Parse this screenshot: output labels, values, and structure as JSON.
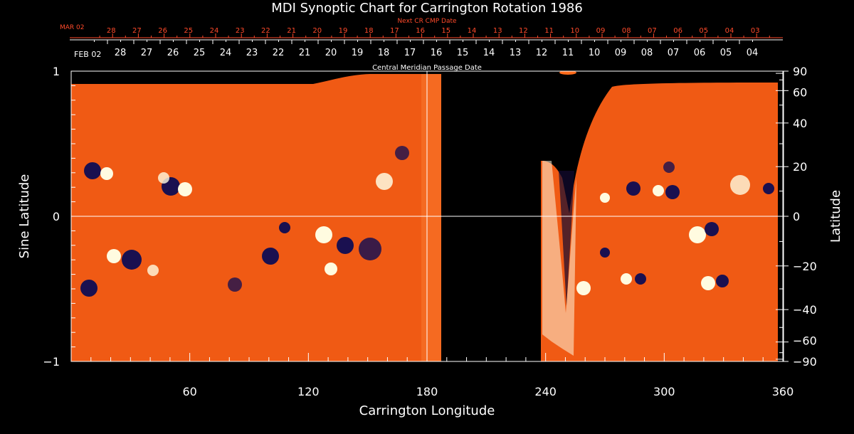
{
  "chart_data": {
    "type": "heatmap",
    "title": "MDI Synoptic Chart for Carrington Rotation 1986",
    "xlabel": "Carrington Longitude",
    "ylabel_left": "Sine Latitude",
    "ylabel_right": "Latitude",
    "xlim": [
      0,
      360
    ],
    "ylim": [
      -1,
      1
    ],
    "x_ticks": [
      60,
      120,
      180,
      240,
      300,
      360
    ],
    "y_ticks_left": [
      {
        "value": 1,
        "label": "1"
      },
      {
        "value": 0,
        "label": "0"
      },
      {
        "value": -1,
        "label": "−1"
      }
    ],
    "y_ticks_right": [
      {
        "deg": 90,
        "label": "90"
      },
      {
        "deg": 60,
        "label": "60"
      },
      {
        "deg": 40,
        "label": "40"
      },
      {
        "deg": 20,
        "label": "20"
      },
      {
        "deg": 0,
        "label": "0"
      },
      {
        "deg": -20,
        "label": "−20"
      },
      {
        "deg": -40,
        "label": "−40"
      },
      {
        "deg": -60,
        "label": "−60"
      },
      {
        "deg": -90,
        "label": "−90"
      }
    ],
    "cmp_axis": {
      "title": "Central Meridian Passage Date",
      "start_label": "FEB 02",
      "days": [
        "28",
        "27",
        "26",
        "25",
        "24",
        "23",
        "22",
        "21",
        "20",
        "19",
        "18",
        "17",
        "16",
        "15",
        "14",
        "13",
        "12",
        "11",
        "10",
        "09",
        "08",
        "07",
        "06",
        "05",
        "04"
      ]
    },
    "next_cr_axis": {
      "title": "Next CR CMP Date",
      "start_label": "MAR 02",
      "days": [
        "28",
        "27",
        "26",
        "25",
        "24",
        "23",
        "22",
        "21",
        "20",
        "19",
        "18",
        "17",
        "16",
        "15",
        "14",
        "13",
        "12",
        "11",
        "10",
        "09",
        "08",
        "07",
        "06",
        "05",
        "04",
        "03"
      ]
    },
    "data_gap_longitude": [
      187,
      236
    ],
    "cursor_longitude": 180,
    "colors": {
      "background": "#000000",
      "field_base": "#ff6a1a",
      "positive_polarity": "#fffbe0",
      "negative_polarity": "#1a1050",
      "next_cr_axis": "#ff4a2a"
    }
  }
}
